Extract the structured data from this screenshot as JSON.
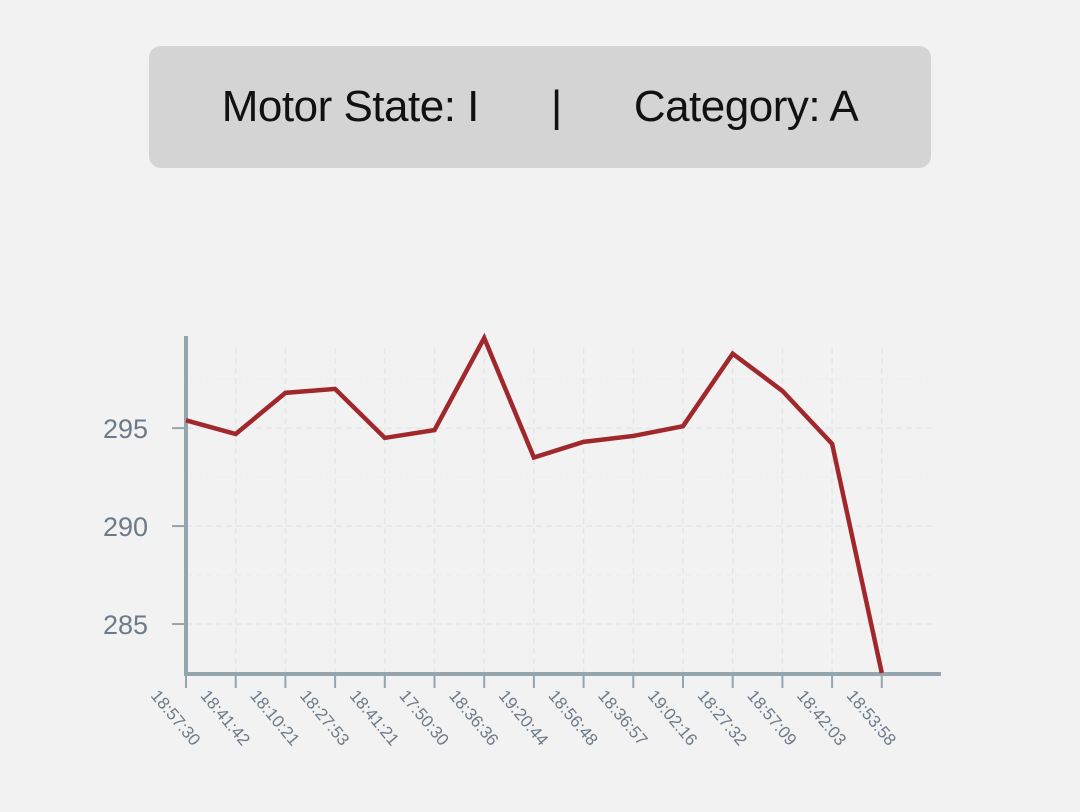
{
  "header": {
    "motor_state": "Motor State: I",
    "separator": "|",
    "category": "Category: A"
  },
  "colors": {
    "line": "#a0282c",
    "axis": "#95a5ae",
    "grid": "#e4e7ea",
    "header_bg": "#d4d4d4",
    "background": "#f2f2f2"
  },
  "chart_data": {
    "type": "line",
    "title": "",
    "xlabel": "",
    "ylabel": "",
    "categories": [
      "18:57:30",
      "18:41:42",
      "18:10:21",
      "18:27:53",
      "18:41:21",
      "17:50:30",
      "18:36:36",
      "19:20:44",
      "18:56:48",
      "18:36:57",
      "19:02:16",
      "18:27:32",
      "18:57:09",
      "18:42:03",
      "18:53:58"
    ],
    "series": [
      {
        "values": [
          295.4,
          294.7,
          296.8,
          297.0,
          294.5,
          294.9,
          299.6,
          293.5,
          294.3,
          294.6,
          295.1,
          298.8,
          296.9,
          294.2,
          282.5
        ]
      }
    ],
    "yticks": [
      285,
      290,
      295
    ],
    "ylim": [
      282.5,
      299.6
    ],
    "grid": true,
    "legend": "none"
  }
}
